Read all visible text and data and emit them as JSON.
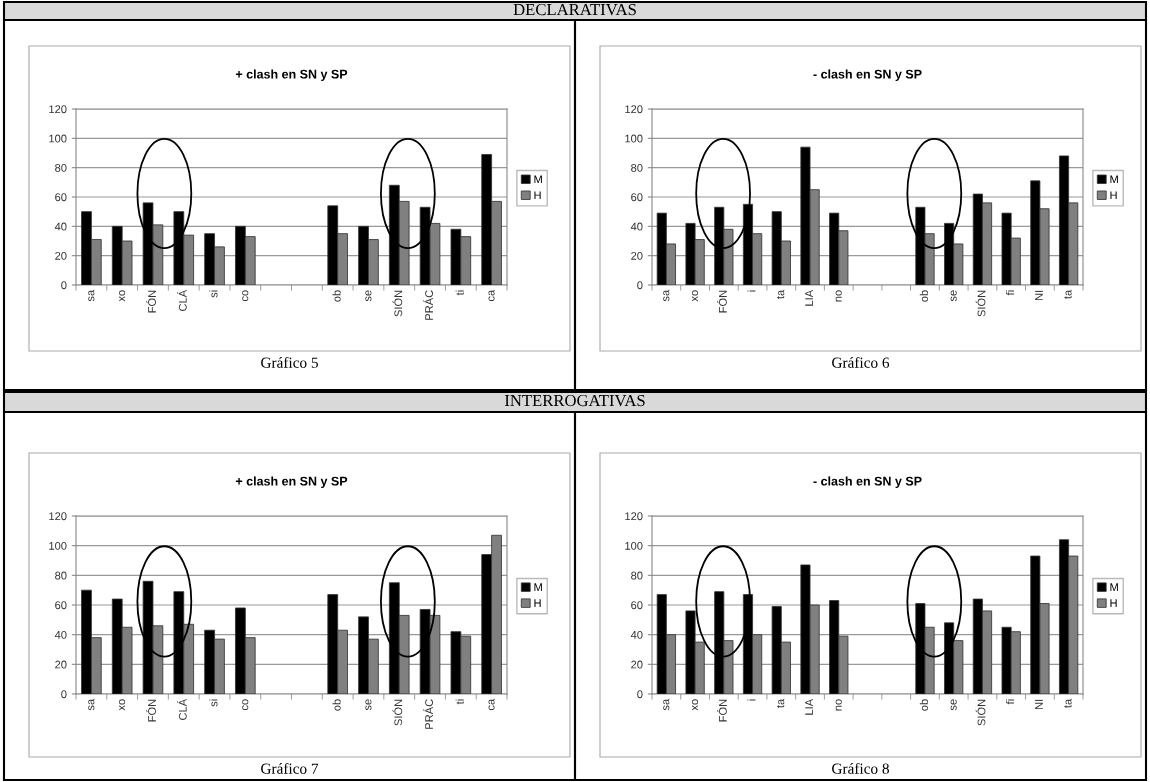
{
  "chart_data": [
    {
      "type": "bar",
      "title": "+ clash en SN y SP",
      "annotations": [
        "DECLARATIVAS",
        "Gráfico 5"
      ],
      "categories": [
        "sa",
        "xo",
        "FÓN",
        "CLÁ",
        "si",
        "co",
        null,
        null,
        "ob",
        "se",
        "SIÓN",
        "PRÁC",
        "ti",
        "ca"
      ],
      "series": [
        {
          "name": "M",
          "color": "#000000",
          "values": [
            50,
            40,
            56,
            50,
            35,
            40,
            null,
            null,
            54,
            40,
            68,
            53,
            38,
            89
          ]
        },
        {
          "name": "H",
          "color": "#808080",
          "values": [
            31,
            30,
            41,
            34,
            26,
            33,
            null,
            null,
            35,
            31,
            57,
            42,
            33,
            57
          ]
        }
      ],
      "ylim": [
        0,
        120
      ],
      "yticks": [
        0,
        20,
        40,
        60,
        80,
        100,
        120
      ],
      "grid": "y",
      "legend": "right"
    },
    {
      "type": "bar",
      "title": "- clash en SN y SP",
      "annotations": [
        "Gráfico 6"
      ],
      "categories": [
        "sa",
        "xo",
        "FÓN",
        "i",
        "ta",
        "LIA",
        "no",
        null,
        null,
        "ob",
        "se",
        "SIÓN",
        "fi",
        "NI",
        "ta"
      ],
      "series": [
        {
          "name": "M",
          "color": "#000000",
          "values": [
            49,
            42,
            53,
            55,
            50,
            94,
            49,
            null,
            null,
            53,
            42,
            62,
            49,
            71,
            88
          ]
        },
        {
          "name": "H",
          "color": "#808080",
          "values": [
            28,
            31,
            38,
            35,
            30,
            65,
            37,
            null,
            null,
            35,
            28,
            56,
            32,
            52,
            56
          ]
        }
      ],
      "ylim": [
        0,
        120
      ],
      "yticks": [
        0,
        20,
        40,
        60,
        80,
        100,
        120
      ],
      "grid": "y",
      "legend": "right"
    },
    {
      "type": "bar",
      "title": "+ clash en SN y SP",
      "annotations": [
        "INTERROGATIVAS",
        "Gráfico 7"
      ],
      "categories": [
        "sa",
        "xo",
        "FÓN",
        "CLÁ",
        "si",
        "co",
        null,
        null,
        "ob",
        "se",
        "SIÓN",
        "PRÁC",
        "ti",
        "ca"
      ],
      "series": [
        {
          "name": "M",
          "color": "#000000",
          "values": [
            70,
            64,
            76,
            69,
            43,
            58,
            null,
            null,
            67,
            52,
            75,
            57,
            42,
            94
          ]
        },
        {
          "name": "H",
          "color": "#808080",
          "values": [
            38,
            45,
            46,
            47,
            37,
            38,
            null,
            null,
            43,
            37,
            53,
            53,
            39,
            107
          ]
        }
      ],
      "ylim": [
        0,
        120
      ],
      "yticks": [
        0,
        20,
        40,
        60,
        80,
        100,
        120
      ],
      "grid": "y",
      "legend": "right"
    },
    {
      "type": "bar",
      "title": "- clash en SN y SP",
      "annotations": [
        "Gráfico 8"
      ],
      "categories": [
        "sa",
        "xo",
        "FÓN",
        "i",
        "ta",
        "LIA",
        "no",
        null,
        null,
        "ob",
        "se",
        "SIÓN",
        "fi",
        "NI",
        "ta"
      ],
      "series": [
        {
          "name": "M",
          "color": "#000000",
          "values": [
            67,
            56,
            69,
            67,
            59,
            87,
            63,
            null,
            null,
            61,
            48,
            64,
            45,
            93,
            104
          ]
        },
        {
          "name": "H",
          "color": "#808080",
          "values": [
            40,
            35,
            36,
            40,
            35,
            60,
            39,
            null,
            null,
            45,
            36,
            56,
            42,
            61,
            93
          ]
        }
      ],
      "ylim": [
        0,
        120
      ],
      "yticks": [
        0,
        20,
        40,
        60,
        80,
        100,
        120
      ],
      "grid": "y",
      "legend": "right"
    }
  ]
}
